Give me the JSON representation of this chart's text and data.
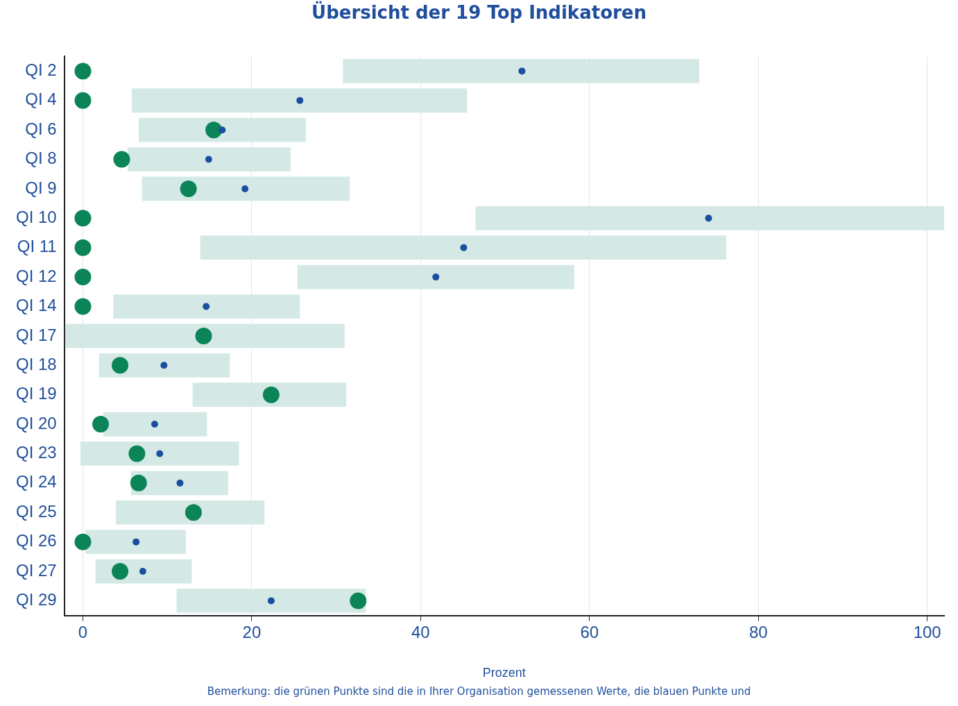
{
  "chart_data": {
    "type": "bar",
    "orientation": "horizontal",
    "title": "Übersicht der 19 Top Indikatoren",
    "xlabel": "Prozent",
    "categories": [
      "QI 2",
      "QI 4",
      "QI 6",
      "QI 8",
      "QI 9",
      "QI 10",
      "QI 11",
      "QI 12",
      "QI 14",
      "QI 17",
      "QI 18",
      "QI 19",
      "QI 20",
      "QI 23",
      "QI 24",
      "QI 25",
      "QI 26",
      "QI 27",
      "QI 29"
    ],
    "series": [
      {
        "color": "#d4e9e6",
        "base": [
          30.8,
          5.8,
          6.6,
          5.3,
          7.0,
          46.5,
          13.9,
          25.4,
          3.6,
          -2.1,
          1.9,
          13.0,
          2.4,
          -0.3,
          5.7,
          3.9,
          0.3,
          1.5,
          11.1
        ],
        "values": [
          42.2,
          39.7,
          19.8,
          19.3,
          24.6,
          55.5,
          62.3,
          32.8,
          22.1,
          33.1,
          15.5,
          18.2,
          12.3,
          18.8,
          11.5,
          17.6,
          11.9,
          11.4,
          22.4
        ]
      },
      {
        "type": "scatter",
        "color": "#1a4fa0",
        "values": [
          52.0,
          25.7,
          16.5,
          14.9,
          19.2,
          74.1,
          45.1,
          41.8,
          14.6,
          null,
          9.6,
          null,
          8.5,
          9.1,
          11.5,
          null,
          6.3,
          7.1,
          22.3
        ]
      },
      {
        "type": "scatter",
        "color": "#0b8457",
        "values": [
          0,
          0,
          15.5,
          4.6,
          12.5,
          0,
          0,
          0,
          0,
          14.3,
          4.4,
          22.3,
          2.1,
          6.4,
          6.6,
          13.1,
          0,
          4.4,
          32.6
        ]
      }
    ],
    "xlim": [
      -2.2,
      102
    ],
    "xticks": [
      0,
      20,
      40,
      60,
      80,
      100
    ],
    "grid": "x",
    "legend": false,
    "marker": "circle",
    "annotations": [
      "Bemerkung: die grünen Punkte sind die in Ihrer Organisation gemessenen Werte, die blauen Punkte und"
    ]
  }
}
